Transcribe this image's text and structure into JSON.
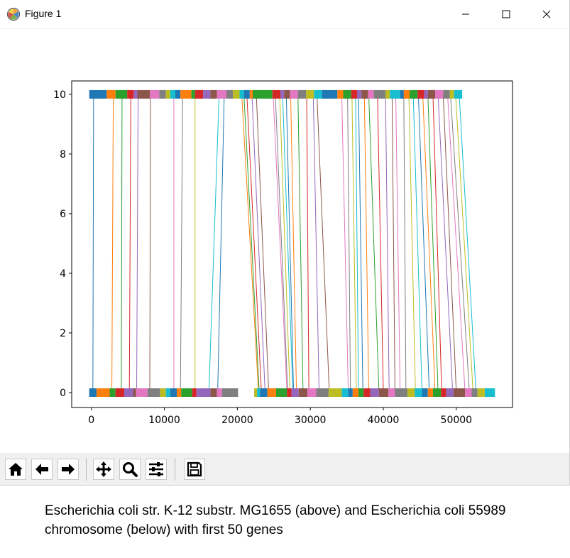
{
  "window": {
    "title": "Figure 1",
    "app_icon": "matplotlib-icon",
    "controls": [
      "minimize-icon",
      "maximize-icon",
      "close-icon"
    ]
  },
  "toolbar": {
    "buttons": [
      {
        "name": "home-button",
        "icon": "home-icon"
      },
      {
        "name": "back-button",
        "icon": "arrow-left-icon"
      },
      {
        "name": "forward-button",
        "icon": "arrow-right-icon"
      },
      {
        "name": "pan-button",
        "icon": "move-icon"
      },
      {
        "name": "zoom-button",
        "icon": "magnifier-icon"
      },
      {
        "name": "configure-subplots-button",
        "icon": "sliders-icon"
      },
      {
        "name": "save-button",
        "icon": "floppy-disk-icon"
      }
    ]
  },
  "caption": "Escherichia coli str. K-12 substr. MG1655 (above) and Escherichia coli 55989 chromosome (below) with first 50 genes",
  "chart_data": {
    "type": "line",
    "title": "",
    "xlabel": "",
    "ylabel": "",
    "xlim": [
      -2700,
      57700
    ],
    "ylim": [
      -0.5,
      10.45
    ],
    "x_ticks": [
      "0",
      "10000",
      "20000",
      "30000",
      "40000",
      "50000"
    ],
    "y_ticks": [
      "0",
      "2",
      "4",
      "6",
      "8",
      "10"
    ],
    "grid": false,
    "legend": "none",
    "palette": [
      "#1f77b4",
      "#ff7f0e",
      "#2ca02c",
      "#d62728",
      "#9467bd",
      "#8c564b",
      "#e377c2",
      "#7f7f7f",
      "#bcbd22",
      "#17becf"
    ],
    "upper_genome": {
      "name": "Escherichia coli str. K-12 substr. MG1655",
      "y": 10,
      "gene_spans": [
        [
          -300,
          2100
        ],
        [
          2100,
          3300
        ],
        [
          3300,
          4900
        ],
        [
          4900,
          5800
        ],
        [
          5800,
          6300
        ],
        [
          6300,
          8000
        ],
        [
          8000,
          9300
        ],
        [
          9300,
          10200
        ],
        [
          10200,
          10800
        ],
        [
          10800,
          11500
        ],
        [
          11500,
          12200
        ],
        [
          12200,
          13700
        ],
        [
          13700,
          14200
        ],
        [
          14200,
          15300
        ],
        [
          15300,
          16300
        ],
        [
          16300,
          17200
        ],
        [
          17200,
          18500
        ],
        [
          18500,
          19400
        ],
        [
          19400,
          20300
        ],
        [
          20300,
          20900
        ],
        [
          20900,
          21700
        ],
        [
          21700,
          22100
        ],
        [
          22100,
          24800
        ],
        [
          24800,
          25900
        ],
        [
          25900,
          26400
        ],
        [
          26400,
          27200
        ],
        [
          27200,
          28300
        ],
        [
          28300,
          29400
        ],
        [
          29400,
          30500
        ],
        [
          30500,
          31600
        ],
        [
          31600,
          33700
        ],
        [
          33700,
          34500
        ],
        [
          34500,
          35600
        ],
        [
          35600,
          36400
        ],
        [
          36400,
          37000
        ],
        [
          37000,
          37900
        ],
        [
          37900,
          38700
        ],
        [
          38700,
          40300
        ],
        [
          40300,
          40900
        ],
        [
          40900,
          42300
        ],
        [
          42300,
          42800
        ],
        [
          42800,
          43600
        ],
        [
          43600,
          44700
        ],
        [
          44700,
          45600
        ],
        [
          45600,
          46100
        ],
        [
          46100,
          47100
        ],
        [
          47100,
          48200
        ],
        [
          48200,
          49100
        ],
        [
          49100,
          49700
        ],
        [
          49700,
          50800
        ]
      ]
    },
    "lower_genome": {
      "name": "Escherichia coli 55989 chromosome",
      "y": 0,
      "gene_spans": [
        [
          -300,
          700
        ],
        [
          700,
          2500
        ],
        [
          2500,
          3300
        ],
        [
          3300,
          4500
        ],
        [
          4500,
          5700
        ],
        [
          5700,
          6100
        ],
        [
          6100,
          7700
        ],
        [
          7700,
          9400
        ],
        [
          9400,
          10200
        ],
        [
          10200,
          10800
        ],
        [
          10800,
          11700
        ],
        [
          11700,
          12300
        ],
        [
          12300,
          13800
        ],
        [
          13800,
          14400
        ],
        [
          14400,
          16300
        ],
        [
          16300,
          17200
        ],
        [
          17200,
          17900
        ],
        [
          17900,
          20100
        ],
        [
          22300,
          22700
        ],
        [
          22700,
          23100
        ],
        [
          23100,
          24100
        ],
        [
          24100,
          25300
        ],
        [
          25300,
          26800
        ],
        [
          26800,
          27400
        ],
        [
          27400,
          28400
        ],
        [
          28400,
          29600
        ],
        [
          29600,
          30800
        ],
        [
          30800,
          32500
        ],
        [
          32500,
          34300
        ],
        [
          34300,
          35200
        ],
        [
          35200,
          35800
        ],
        [
          35800,
          36600
        ],
        [
          36600,
          37300
        ],
        [
          37300,
          38200
        ],
        [
          38200,
          39400
        ],
        [
          39400,
          40700
        ],
        [
          40700,
          41600
        ],
        [
          41600,
          43300
        ],
        [
          43300,
          44300
        ],
        [
          44300,
          45300
        ],
        [
          45300,
          46100
        ],
        [
          46100,
          46800
        ],
        [
          46800,
          47900
        ],
        [
          47900,
          48600
        ],
        [
          48600,
          49600
        ],
        [
          49600,
          51200
        ],
        [
          51200,
          52100
        ],
        [
          52100,
          52900
        ],
        [
          52900,
          53900
        ],
        [
          53900,
          55300
        ]
      ]
    },
    "links": [
      [
        300,
        200
      ],
      [
        3000,
        2800
      ],
      [
        4200,
        4100
      ],
      [
        5400,
        5200
      ],
      [
        6400,
        6200
      ],
      [
        8100,
        8000
      ],
      [
        11300,
        11300
      ],
      [
        12500,
        12200
      ],
      [
        14200,
        14200
      ],
      [
        17500,
        16100
      ],
      [
        18200,
        17300
      ],
      [
        20600,
        22900
      ],
      [
        20900,
        23000
      ],
      [
        21300,
        23300
      ],
      [
        22000,
        23800
      ],
      [
        22600,
        24300
      ],
      [
        24900,
        26800
      ],
      [
        25200,
        26900
      ],
      [
        25800,
        27200
      ],
      [
        26200,
        27600
      ],
      [
        26700,
        27700
      ],
      [
        27300,
        28100
      ],
      [
        28300,
        29000
      ],
      [
        29500,
        29800
      ],
      [
        30400,
        31200
      ],
      [
        30900,
        32600
      ],
      [
        34300,
        35200
      ],
      [
        35100,
        35500
      ],
      [
        35700,
        36300
      ],
      [
        36200,
        36600
      ],
      [
        36600,
        37200
      ],
      [
        37400,
        38000
      ],
      [
        38000,
        39400
      ],
      [
        39200,
        40000
      ],
      [
        40300,
        40800
      ],
      [
        41200,
        41600
      ],
      [
        41700,
        42300
      ],
      [
        42800,
        43100
      ],
      [
        43500,
        44400
      ],
      [
        44100,
        45300
      ],
      [
        44800,
        46300
      ],
      [
        45400,
        47100
      ],
      [
        46100,
        47500
      ],
      [
        46800,
        48000
      ],
      [
        47500,
        49500
      ],
      [
        48200,
        50000
      ],
      [
        48800,
        51200
      ],
      [
        49200,
        51800
      ],
      [
        49900,
        52300
      ],
      [
        50400,
        52700
      ]
    ]
  }
}
